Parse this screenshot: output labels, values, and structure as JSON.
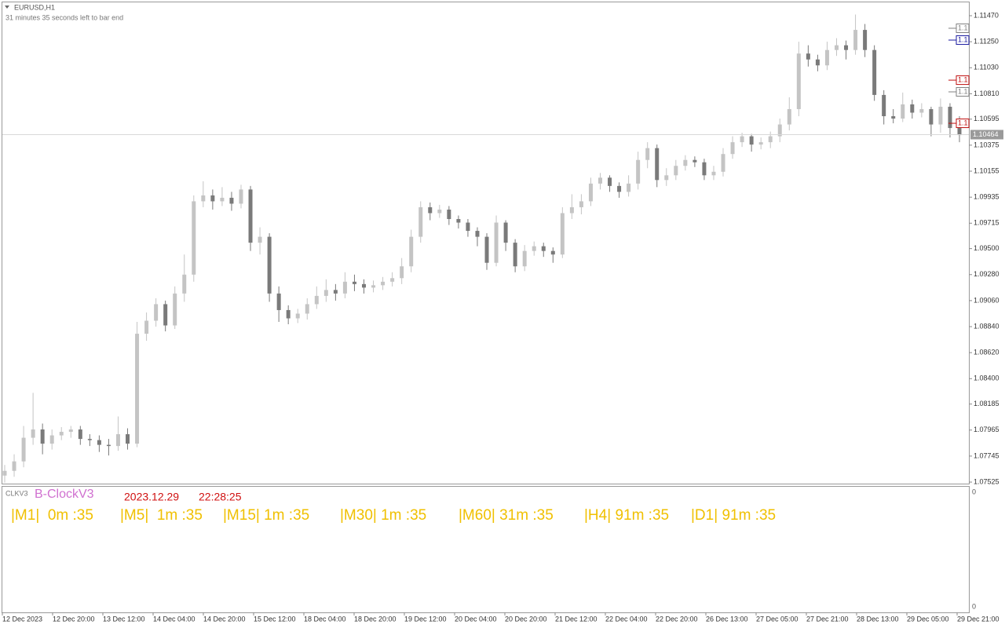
{
  "header": {
    "title": "EURUSD,H1",
    "subtitle": "31 minutes 35 seconds left to bar end"
  },
  "chart_data": {
    "type": "candlestick",
    "up_color": "#c4c4c4",
    "down_color": "#7a7a7a",
    "ylim": [
      1.07512,
      1.11583
    ],
    "yticks": [
      {
        "value": 1.1147,
        "label": "1.11470"
      },
      {
        "value": 1.1125,
        "label": "1.11250"
      },
      {
        "value": 1.1103,
        "label": "1.11030"
      },
      {
        "value": 1.1081,
        "label": "1.10810"
      },
      {
        "value": 1.10595,
        "label": "1.10595"
      },
      {
        "value": 1.10375,
        "label": "1.10375"
      },
      {
        "value": 1.10155,
        "label": "1.10155"
      },
      {
        "value": 1.09935,
        "label": "1.09935"
      },
      {
        "value": 1.09715,
        "label": "1.09715"
      },
      {
        "value": 1.095,
        "label": "1.09500"
      },
      {
        "value": 1.0928,
        "label": "1.09280"
      },
      {
        "value": 1.0906,
        "label": "1.09060"
      },
      {
        "value": 1.0884,
        "label": "1.08840"
      },
      {
        "value": 1.0862,
        "label": "1.08620"
      },
      {
        "value": 1.084,
        "label": "1.08400"
      },
      {
        "value": 1.08185,
        "label": "1.08185"
      },
      {
        "value": 1.07965,
        "label": "1.07965"
      },
      {
        "value": 1.07745,
        "label": "1.07745"
      },
      {
        "value": 1.07525,
        "label": "1.07525"
      }
    ],
    "time_labels": [
      "12 Dec 2023",
      "12 Dec 20:00",
      "13 Dec 12:00",
      "14 Dec 04:00",
      "14 Dec 20:00",
      "15 Dec 12:00",
      "18 Dec 04:00",
      "18 Dec 20:00",
      "19 Dec 12:00",
      "20 Dec 04:00",
      "20 Dec 20:00",
      "21 Dec 12:00",
      "22 Dec 04:00",
      "22 Dec 20:00",
      "26 Dec 13:00",
      "27 Dec 05:00",
      "27 Dec 21:00",
      "28 Dec 13:00",
      "29 Dec 05:00",
      "29 Dec 21:00"
    ],
    "current_price": {
      "value": 1.10464,
      "label": "1.10464",
      "color": "#9a9a9a"
    },
    "price_markers": [
      {
        "value": 1.11364,
        "label": "1.1",
        "color": "#808080"
      },
      {
        "value": 1.11264,
        "label": "1.1",
        "color": "#1a1aa0"
      },
      {
        "value": 1.10925,
        "label": "1.1",
        "color": "#c01010"
      },
      {
        "value": 1.10826,
        "label": "1.1",
        "color": "#808080"
      },
      {
        "value": 1.1056,
        "label": "1.1",
        "color": "#c01010"
      }
    ],
    "open": [
      1.0758,
      1.0762,
      1.077,
      1.079,
      1.0797,
      1.0785,
      1.0792,
      1.0795,
      1.0797,
      1.0789,
      1.0788,
      1.0784,
      1.0783,
      1.0793,
      1.0785,
      1.0878,
      1.0889,
      1.0903,
      1.0885,
      1.0912,
      1.0928,
      1.099,
      1.0995,
      1.099,
      1.0993,
      1.0988,
      1.1,
      1.0955,
      1.096,
      1.0912,
      1.0898,
      1.0891,
      1.0895,
      1.0903,
      1.091,
      1.0915,
      1.0912,
      1.0922,
      1.092,
      1.0917,
      1.0919,
      1.0922,
      1.0925,
      1.0935,
      1.096,
      1.0985,
      1.098,
      1.0983,
      1.0975,
      1.0972,
      1.0965,
      1.096,
      1.0938,
      1.0972,
      1.0955,
      1.0935,
      1.0948,
      1.0952,
      1.0948,
      1.0945,
      1.098,
      1.0985,
      1.099,
      1.1005,
      1.101,
      1.1003,
      1.0998,
      1.1005,
      1.1025,
      1.1035,
      1.1008,
      1.1012,
      1.102,
      1.1025,
      1.1023,
      1.1012,
      1.1015,
      1.103,
      1.104,
      1.1045,
      1.1038,
      1.104,
      1.1045,
      1.1055,
      1.1068,
      1.1115,
      1.111,
      1.1105,
      1.1118,
      1.1122,
      1.1118,
      1.1135,
      1.1118,
      1.108,
      1.1062,
      1.106,
      1.1072,
      1.1065,
      1.1068,
      1.1055,
      1.107,
      1.1052
    ],
    "high": [
      1.0767,
      1.0776,
      1.08,
      1.0828,
      1.0802,
      1.0797,
      1.0799,
      1.08,
      1.08,
      1.0793,
      1.0792,
      1.0789,
      1.0808,
      1.0798,
      1.0888,
      1.0896,
      1.0908,
      1.0906,
      1.0918,
      1.0945,
      1.0995,
      1.1007,
      1.1,
      1.1002,
      1.0998,
      1.1004,
      1.1003,
      1.0968,
      1.0963,
      1.0918,
      1.0902,
      1.0899,
      1.0908,
      1.0918,
      1.0924,
      1.092,
      1.093,
      1.0928,
      1.0924,
      1.0923,
      1.0926,
      1.093,
      1.0942,
      1.0966,
      1.099,
      1.0989,
      1.0987,
      1.0986,
      1.0978,
      1.0975,
      1.0968,
      1.0963,
      1.0978,
      1.0974,
      1.0958,
      1.0953,
      1.0956,
      1.0955,
      1.0951,
      1.0985,
      1.0996,
      1.0996,
      1.101,
      1.1014,
      1.1012,
      1.1006,
      1.1012,
      1.1032,
      1.104,
      1.1038,
      1.1018,
      1.1025,
      1.1029,
      1.1028,
      1.1026,
      1.102,
      1.1035,
      1.1045,
      1.1048,
      1.1047,
      1.1044,
      1.1049,
      1.106,
      1.1078,
      1.1125,
      1.1122,
      1.1114,
      1.1125,
      1.1128,
      1.1126,
      1.1148,
      1.114,
      1.1122,
      1.1084,
      1.1068,
      1.1082,
      1.1076,
      1.1073,
      1.107,
      1.1077,
      1.1073,
      1.1062
    ],
    "low": [
      1.0752,
      1.0757,
      1.0765,
      1.0784,
      1.0776,
      1.078,
      1.0788,
      1.079,
      1.0784,
      1.0783,
      1.0778,
      1.0775,
      1.0779,
      1.078,
      1.0782,
      1.0872,
      1.0884,
      1.088,
      1.0882,
      1.0905,
      1.0922,
      1.0985,
      1.0983,
      1.0986,
      1.0982,
      1.0984,
      1.0948,
      1.0945,
      1.0905,
      1.0888,
      1.0886,
      1.0887,
      1.089,
      1.0899,
      1.0905,
      1.0906,
      1.0908,
      1.0914,
      1.0912,
      1.0913,
      1.0915,
      1.0918,
      1.092,
      1.093,
      1.0955,
      1.0974,
      1.0976,
      1.097,
      1.0967,
      1.096,
      1.0952,
      1.0932,
      1.0935,
      1.0948,
      1.093,
      1.0931,
      1.0944,
      1.0943,
      1.0938,
      1.0942,
      1.0975,
      1.0979,
      1.0986,
      1.1,
      1.0998,
      1.0993,
      1.0994,
      1.1,
      1.1018,
      1.1002,
      1.1003,
      1.1008,
      1.1016,
      1.1019,
      1.1008,
      1.1008,
      1.1011,
      1.1026,
      1.1036,
      1.1032,
      1.1034,
      1.1035,
      1.104,
      1.105,
      1.1062,
      1.1104,
      1.11,
      1.1101,
      1.1113,
      1.111,
      1.1114,
      1.1112,
      1.1075,
      1.1055,
      1.1056,
      1.1057,
      1.106,
      1.1061,
      1.1045,
      1.1048,
      1.1044,
      1.104
    ],
    "close": [
      1.0762,
      1.077,
      1.079,
      1.0797,
      1.0785,
      1.0792,
      1.0795,
      1.0797,
      1.0789,
      1.0788,
      1.0784,
      1.0783,
      1.0793,
      1.0785,
      1.0878,
      1.0889,
      1.0903,
      1.0885,
      1.0912,
      1.0928,
      1.099,
      1.0995,
      1.099,
      1.0993,
      1.0988,
      1.1,
      1.0955,
      1.096,
      1.0912,
      1.0898,
      1.0891,
      1.0895,
      1.0903,
      1.091,
      1.0915,
      1.0912,
      1.0922,
      1.092,
      1.0917,
      1.0919,
      1.0922,
      1.0925,
      1.0935,
      1.096,
      1.0985,
      1.098,
      1.0983,
      1.0975,
      1.0972,
      1.0965,
      1.096,
      1.0938,
      1.0972,
      1.0955,
      1.0935,
      1.0948,
      1.0952,
      1.0948,
      1.0945,
      1.098,
      1.0985,
      1.099,
      1.1005,
      1.101,
      1.1003,
      1.0998,
      1.1005,
      1.1025,
      1.1035,
      1.1008,
      1.1012,
      1.102,
      1.1025,
      1.1023,
      1.1012,
      1.1015,
      1.103,
      1.104,
      1.1045,
      1.1038,
      1.104,
      1.1045,
      1.1055,
      1.1068,
      1.1115,
      1.111,
      1.1105,
      1.1118,
      1.1122,
      1.1118,
      1.1135,
      1.1118,
      1.108,
      1.1062,
      1.106,
      1.1072,
      1.1065,
      1.1068,
      1.1055,
      1.107,
      1.1052,
      1.1046
    ]
  },
  "indicator": {
    "short_name": "CLKV3",
    "name": "B-ClockV3",
    "date": "2023.12.29",
    "time": "22:28:25",
    "axis_top": 0,
    "axis_bottom": 0,
    "timers": [
      "|M1|  0m :35",
      "|M5|  1m :35",
      "|M15| 1m :35",
      "|M30| 1m :35",
      "|M60| 31m :35",
      "|H4| 91m :35",
      "|D1| 91m :35"
    ]
  }
}
